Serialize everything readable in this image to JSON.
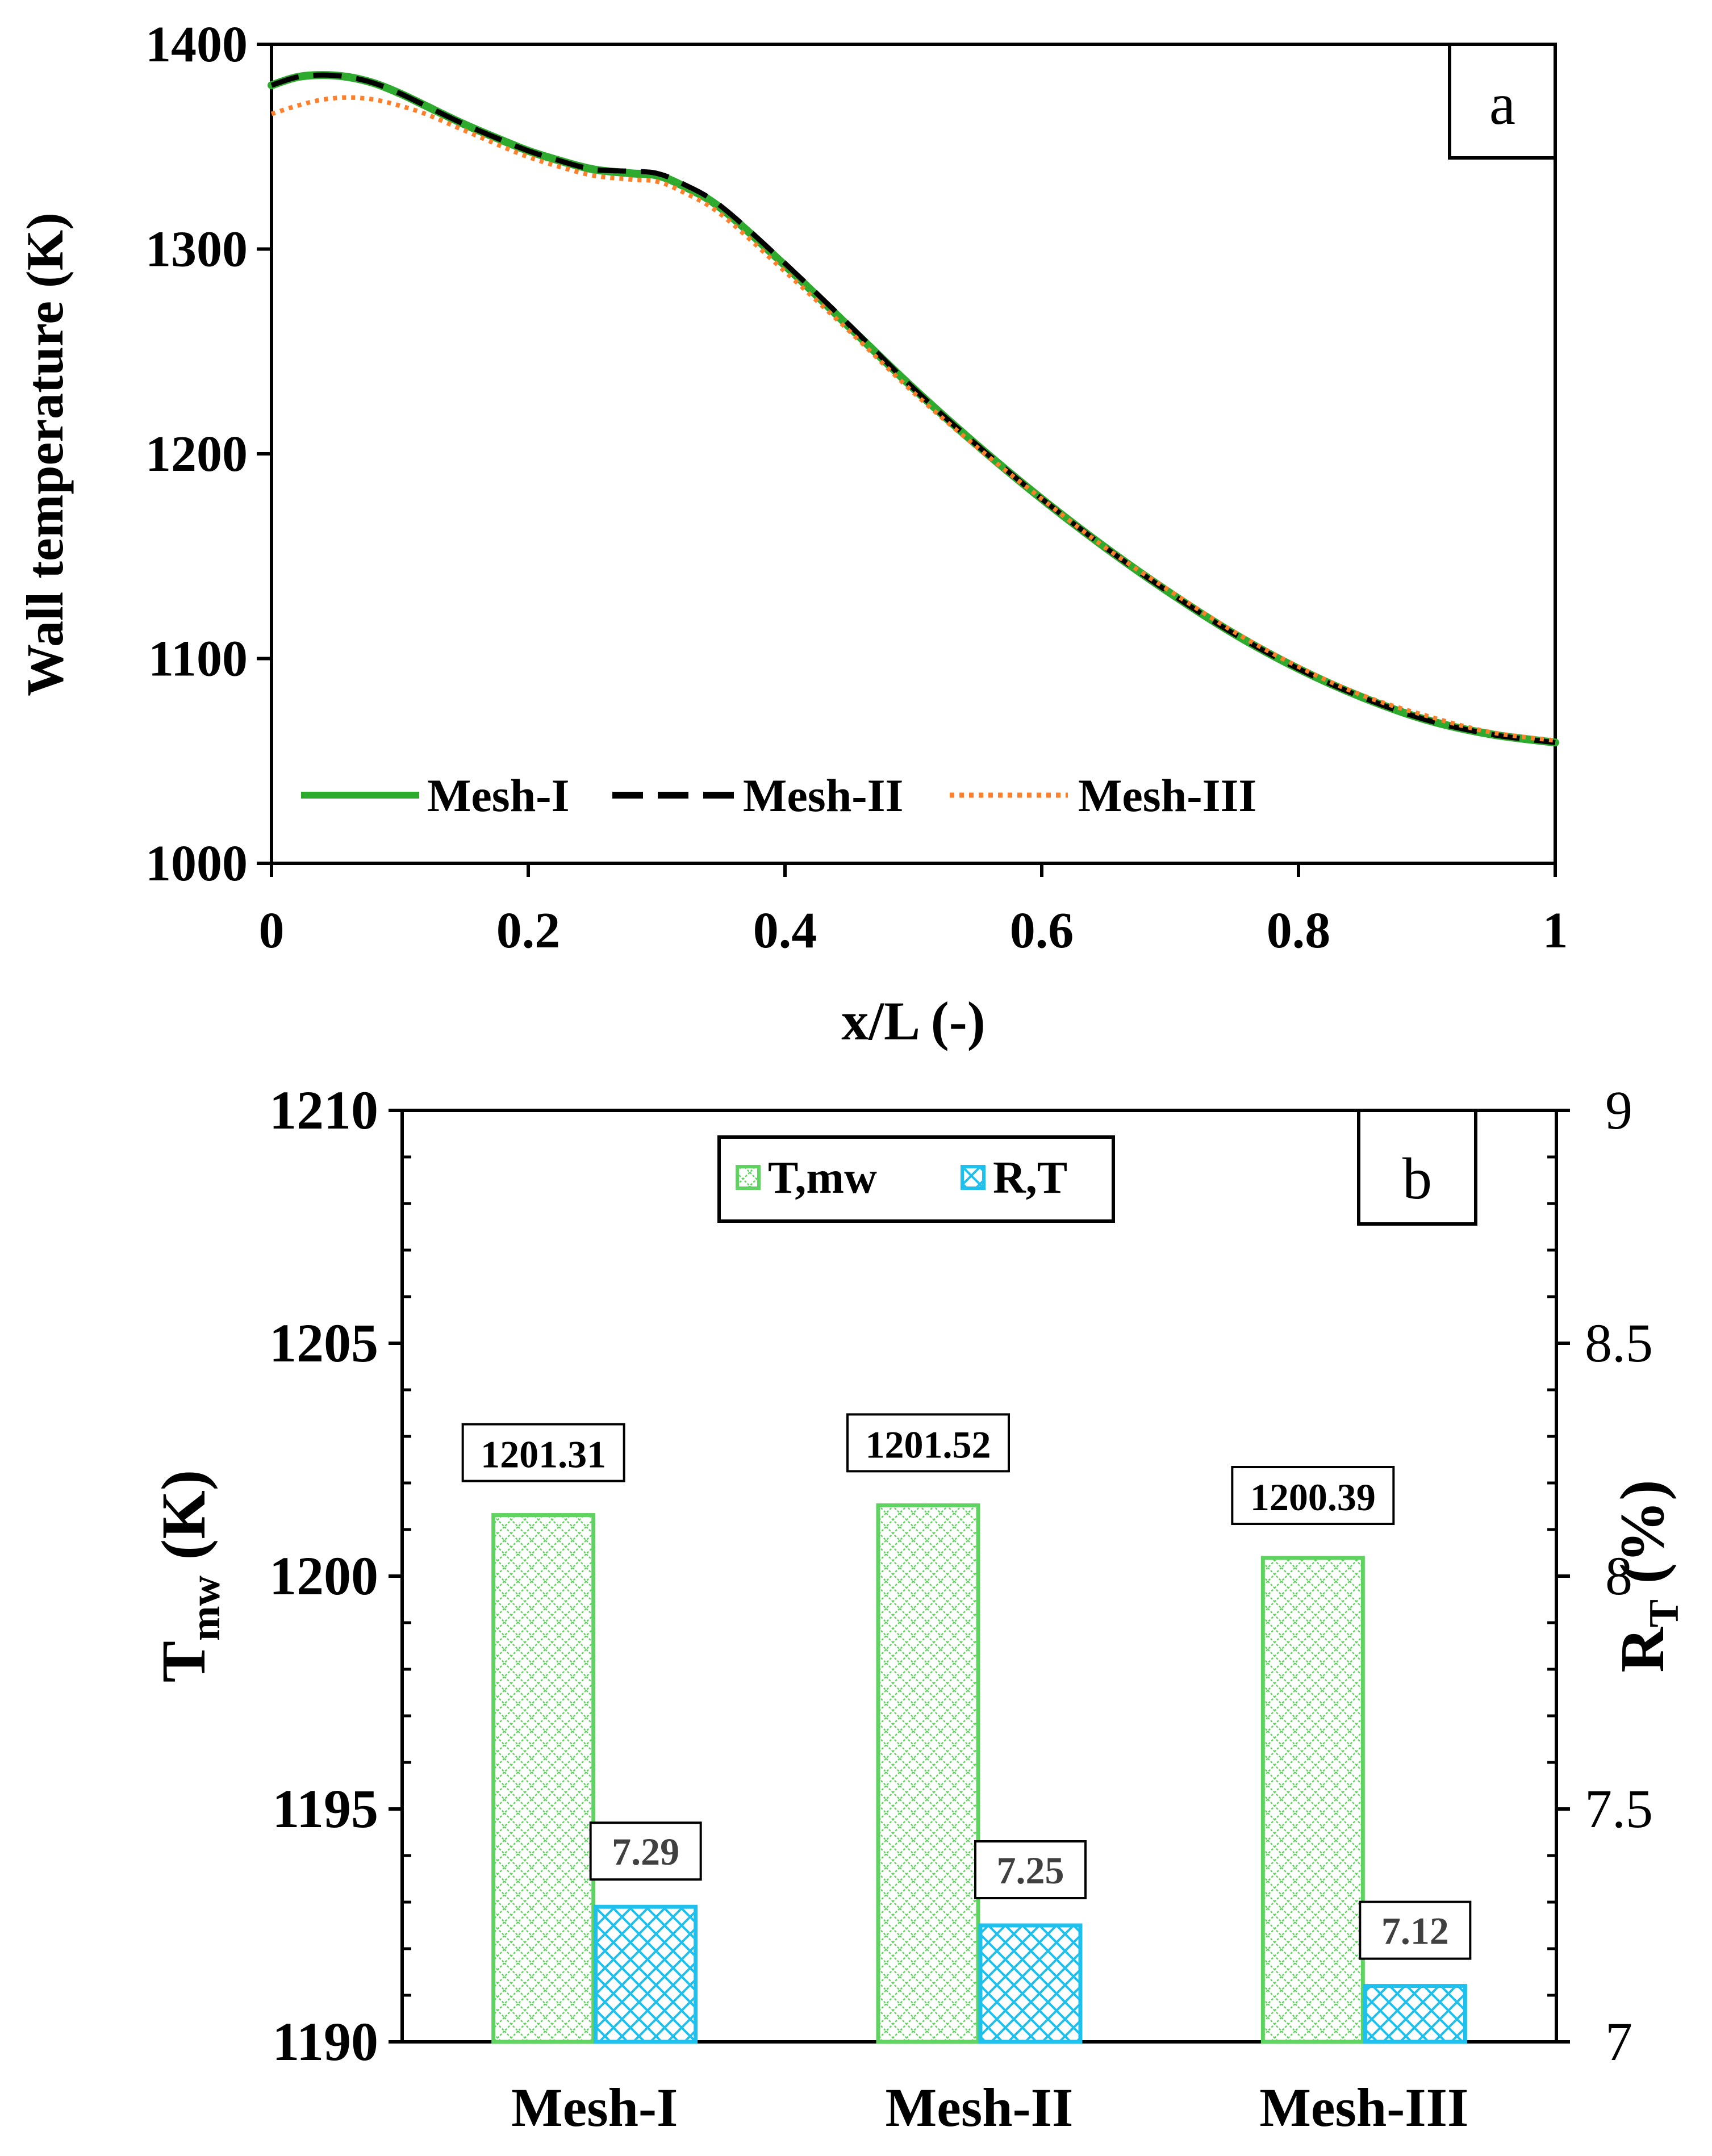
{
  "colors": {
    "mesh1": "#2eaa2e",
    "mesh2": "#000000",
    "mesh3": "#ff7f2a",
    "tmw": "#5fd35f",
    "rt": "#1ec0ee"
  },
  "chart_data": [
    {
      "type": "line",
      "panel_label": "a",
      "xlabel": "x/L (-)",
      "ylabel": "Wall temperature (K)",
      "xlim": [
        0,
        1
      ],
      "ylim": [
        1000,
        1400
      ],
      "xticks": [
        "0",
        "0.2",
        "0.4",
        "0.6",
        "0.8",
        "1"
      ],
      "yticks": [
        "1000",
        "1100",
        "1200",
        "1300",
        "1400"
      ],
      "x": [
        0,
        0.02,
        0.04,
        0.06,
        0.08,
        0.1,
        0.12,
        0.15,
        0.18,
        0.2,
        0.22,
        0.25,
        0.28,
        0.3,
        0.32,
        0.35,
        0.4,
        0.45,
        0.5,
        0.55,
        0.6,
        0.65,
        0.7,
        0.75,
        0.8,
        0.85,
        0.9,
        0.95,
        1.0
      ],
      "series": [
        {
          "name": "Mesh-I",
          "values": [
            1380,
            1384,
            1385,
            1384,
            1381,
            1376,
            1370,
            1361,
            1353,
            1348,
            1344,
            1339,
            1337,
            1336,
            1331,
            1320,
            1292,
            1262,
            1232,
            1204,
            1178,
            1154,
            1132,
            1112,
            1095,
            1081,
            1070,
            1063,
            1059
          ]
        },
        {
          "name": "Mesh-II",
          "values": [
            1380,
            1384,
            1385,
            1384,
            1381,
            1376,
            1370,
            1361,
            1353,
            1348,
            1344,
            1339,
            1338,
            1337,
            1332,
            1321,
            1293,
            1263,
            1232,
            1204,
            1178,
            1154,
            1132,
            1112,
            1095,
            1081,
            1070,
            1063,
            1059
          ]
        },
        {
          "name": "Mesh-III",
          "values": [
            1366,
            1370,
            1373,
            1374,
            1373,
            1370,
            1366,
            1358,
            1350,
            1345,
            1341,
            1336,
            1334,
            1333,
            1328,
            1317,
            1289,
            1260,
            1230,
            1203,
            1178,
            1154,
            1133,
            1113,
            1096,
            1082,
            1072,
            1064,
            1060
          ]
        }
      ]
    },
    {
      "type": "bar",
      "panel_label": "b",
      "categories": [
        "Mesh-I",
        "Mesh-II",
        "Mesh-III"
      ],
      "ylabel_left": {
        "main": "T",
        "sub": "mw",
        "rest": " (K)"
      },
      "ylabel_right": {
        "main": "R",
        "sub": "T",
        "rest": " (%)"
      },
      "ylim_left": [
        1190,
        1210
      ],
      "ylim_right": [
        7,
        9
      ],
      "yticks_left": [
        "1190",
        "1195",
        "1200",
        "1205",
        "1210"
      ],
      "yticks_right": [
        "7",
        "7.5",
        "8",
        "8.5",
        "9"
      ],
      "series": [
        {
          "name": "T,mw",
          "axis": "left",
          "values": [
            1201.31,
            1201.52,
            1200.39
          ],
          "labels": [
            "1201.31",
            "1201.52",
            "1200.39"
          ]
        },
        {
          "name": "R,T",
          "axis": "right",
          "values": [
            7.29,
            7.25,
            7.12
          ],
          "labels": [
            "7.29",
            "7.25",
            "7.12"
          ]
        }
      ]
    }
  ]
}
